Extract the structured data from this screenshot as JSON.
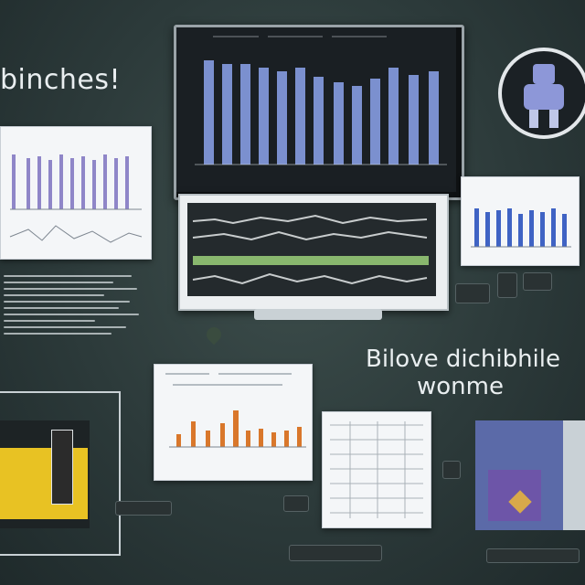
{
  "labels": {
    "top_left": "binches!",
    "middle_right_line1": "Bilove dichibhile",
    "middle_right_line2": "wonme"
  },
  "colors": {
    "background": "#2e3c3c",
    "monitor_bar_blue": "#7b90cf",
    "small_bar_purple": "#8f86c8",
    "small_bar_blue": "#3f63c4",
    "orange_bar": "#d9772b",
    "gauge_green": "#9bd07a"
  },
  "icons": [
    "robot-icon",
    "drop-pin-icon"
  ]
}
